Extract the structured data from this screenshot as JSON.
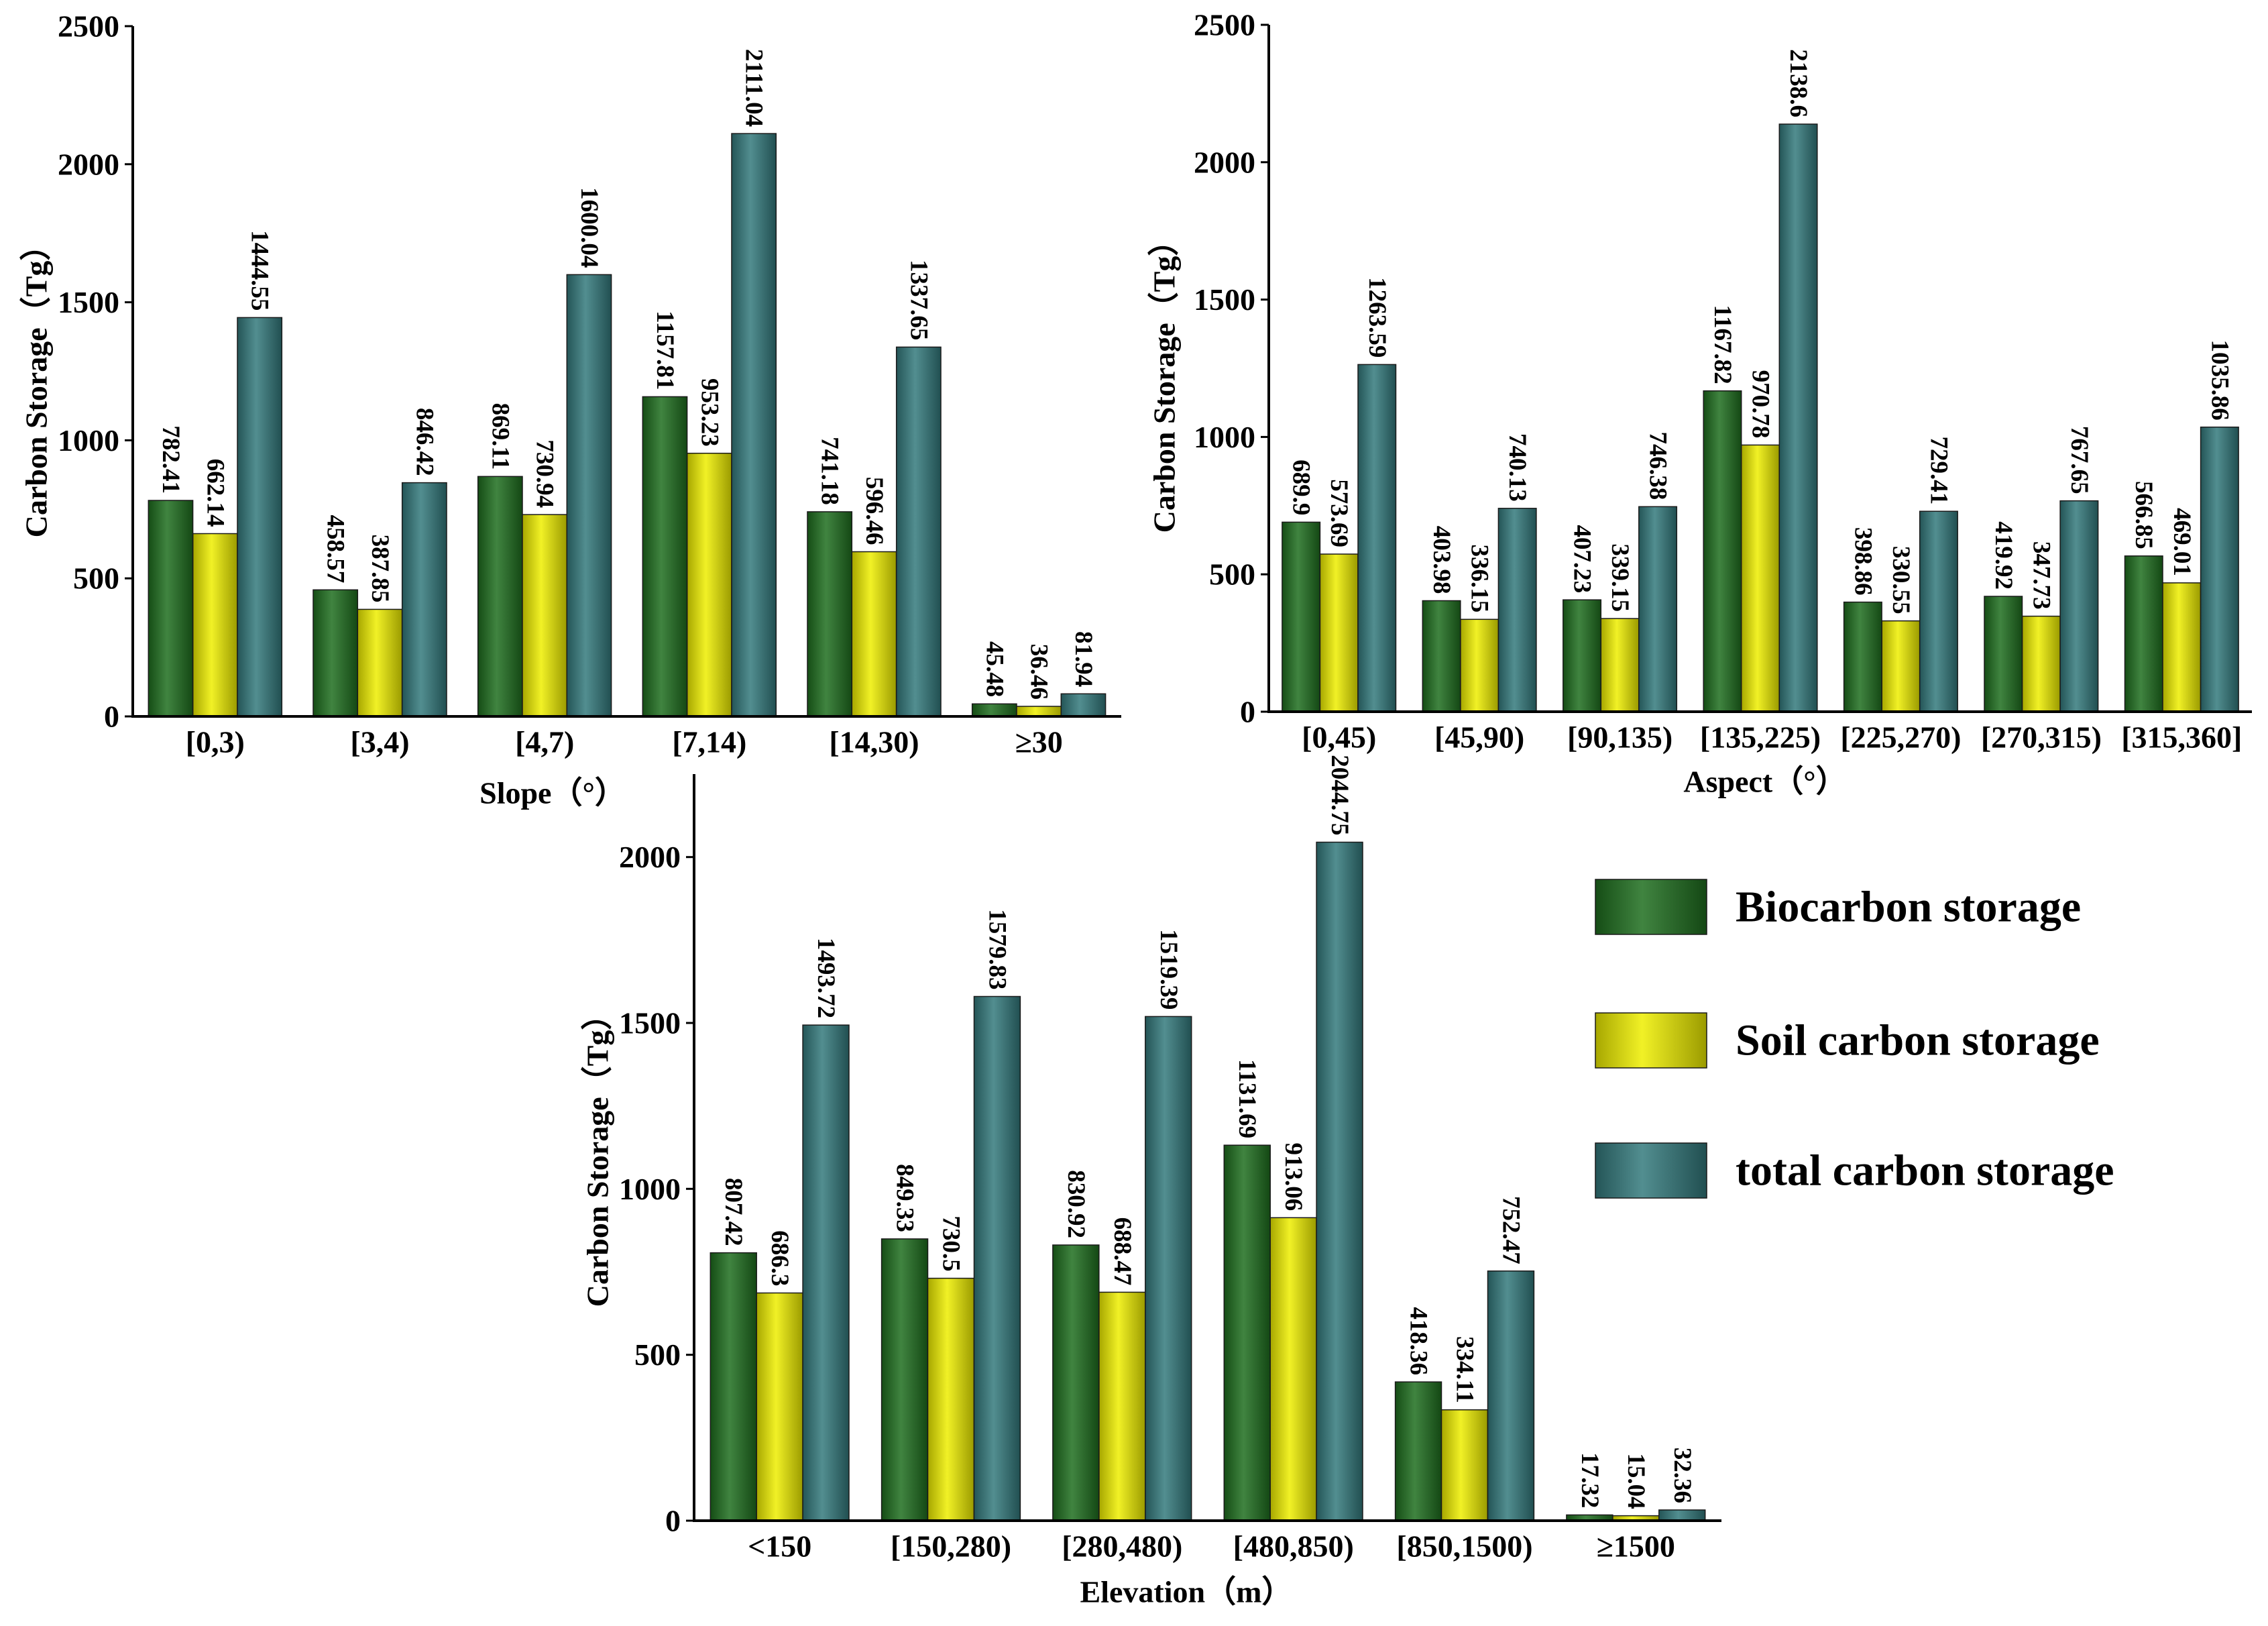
{
  "chart_data": [
    {
      "type": "bar",
      "categories": [
        "[0,3)",
        "[3,4)",
        "[4,7)",
        "[7,14)",
        "[14,30)",
        "≥30"
      ],
      "series": [
        {
          "name": "Biocarbon storage",
          "values": [
            782.41,
            458.57,
            869.11,
            1157.81,
            741.18,
            45.48
          ]
        },
        {
          "name": "Soil carbon storage",
          "values": [
            662.14,
            387.85,
            730.94,
            953.23,
            596.46,
            36.46
          ]
        },
        {
          "name": "total carbon storage",
          "values": [
            1444.55,
            846.42,
            1600.04,
            2111.04,
            1337.65,
            81.94
          ]
        }
      ],
      "xlabel": "Slope（°）",
      "ylabel": "Carbon Storage（Tg）",
      "ylim": [
        0,
        2500
      ],
      "yticks": [
        0,
        500,
        1000,
        1500,
        2000,
        2500
      ],
      "grid": false
    },
    {
      "type": "bar",
      "categories": [
        "[0,45)",
        "[45,90)",
        "[90,135)",
        "[135,225)",
        "[225,270)",
        "[270,315)",
        "[315,360]"
      ],
      "series": [
        {
          "name": "Biocarbon storage",
          "values": [
            689.9,
            403.98,
            407.23,
            1167.82,
            398.86,
            419.92,
            566.85
          ]
        },
        {
          "name": "Soil carbon storage",
          "values": [
            573.69,
            336.15,
            339.15,
            970.78,
            330.55,
            347.73,
            469.01
          ]
        },
        {
          "name": "total carbon storage",
          "values": [
            1263.59,
            740.13,
            746.38,
            2138.6,
            729.41,
            767.65,
            1035.86
          ]
        }
      ],
      "xlabel": "Aspect（°）",
      "ylabel": "Carbon Storage（Tg）",
      "ylim": [
        0,
        2500
      ],
      "yticks": [
        0,
        500,
        1000,
        1500,
        2000,
        2500
      ],
      "grid": false
    },
    {
      "type": "bar",
      "categories": [
        "<150",
        "[150,280)",
        "[280,480)",
        "[480,850)",
        "[850,1500)",
        "≥1500"
      ],
      "series": [
        {
          "name": "Biocarbon storage",
          "values": [
            807.42,
            849.33,
            830.92,
            1131.69,
            418.36,
            17.32
          ]
        },
        {
          "name": "Soil carbon storage",
          "values": [
            686.3,
            730.5,
            688.47,
            913.06,
            334.11,
            15.04
          ]
        },
        {
          "name": "total carbon storage",
          "values": [
            1493.72,
            1579.83,
            1519.39,
            2044.75,
            752.47,
            32.36
          ]
        }
      ],
      "xlabel": "Elevation（m）",
      "ylabel": "Carbon Storage（Tg）",
      "ylim": [
        0,
        2250
      ],
      "yticks": [
        0,
        500,
        1000,
        1500,
        2000
      ],
      "grid": false
    }
  ],
  "legend": {
    "items": [
      {
        "name": "Biocarbon storage",
        "color": "#1e6e1e"
      },
      {
        "name": "Soil carbon storage",
        "color": "#eeee00"
      },
      {
        "name": "total carbon storage",
        "color": "#337a7c"
      }
    ]
  }
}
